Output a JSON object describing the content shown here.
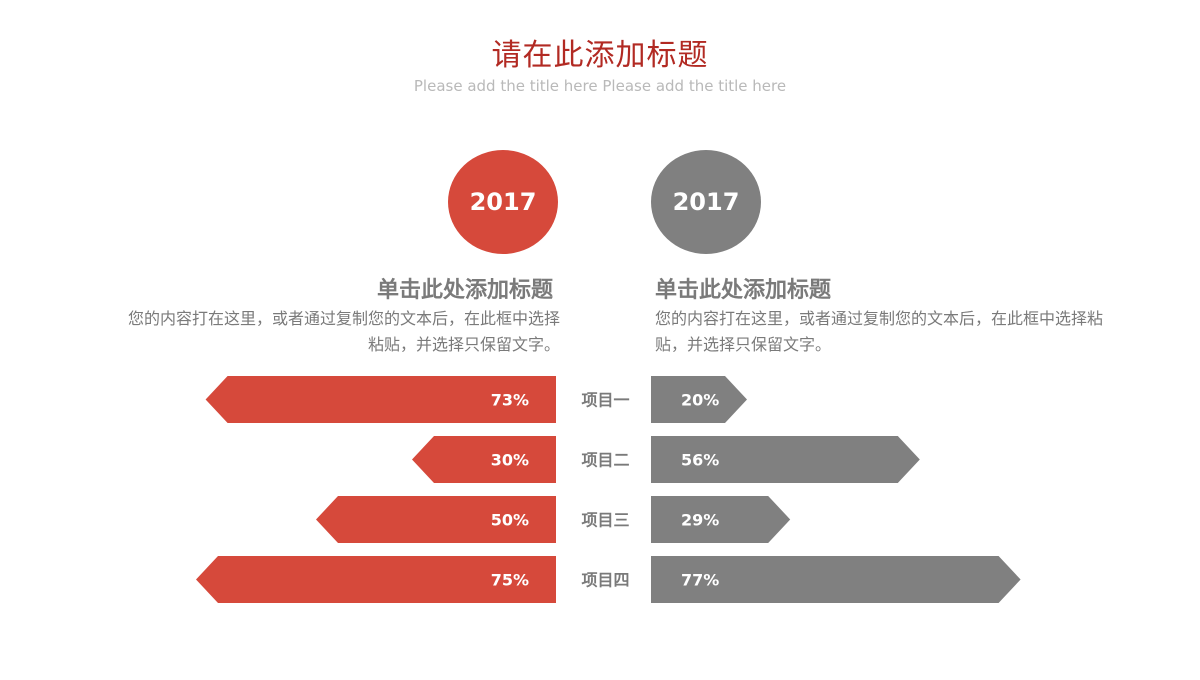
{
  "header": {
    "title": "请在此添加标题",
    "subtitle": "Please add the title here Please add the title here"
  },
  "left_panel": {
    "year": "2017",
    "heading": "单击此处添加标题",
    "description_line1": "您的内容打在这里，或者通过复制您的文本后，在此框中选择",
    "description_line2": "粘贴，并选择只保留文字。"
  },
  "right_panel": {
    "year": "2017",
    "heading": "单击此处添加标题",
    "description_line1": "您的内容打在这里，或者通过复制您的文本后，在此框中选择粘",
    "description_line2": "贴，并选择只保留文字。"
  },
  "colors": {
    "title": "#b22a23",
    "left_accent": "#d6493b",
    "right_accent": "#808080",
    "text_gray": "#7a7a7a",
    "subtitle_gray": "#b9b9b9"
  },
  "chart_data": {
    "type": "bar",
    "categories": [
      "项目一",
      "项目二",
      "项目三",
      "项目四"
    ],
    "series": [
      {
        "values": [
          73,
          30,
          50,
          75
        ],
        "labels": [
          "73%",
          "30%",
          "50%",
          "75%"
        ],
        "direction": "left",
        "color": "#d6493b"
      },
      {
        "values": [
          20,
          56,
          29,
          77
        ],
        "labels": [
          "20%",
          "56%",
          "29%",
          "77%"
        ],
        "direction": "right",
        "color": "#808080"
      }
    ],
    "unit": "%",
    "ylim": [
      0,
      100
    ]
  }
}
